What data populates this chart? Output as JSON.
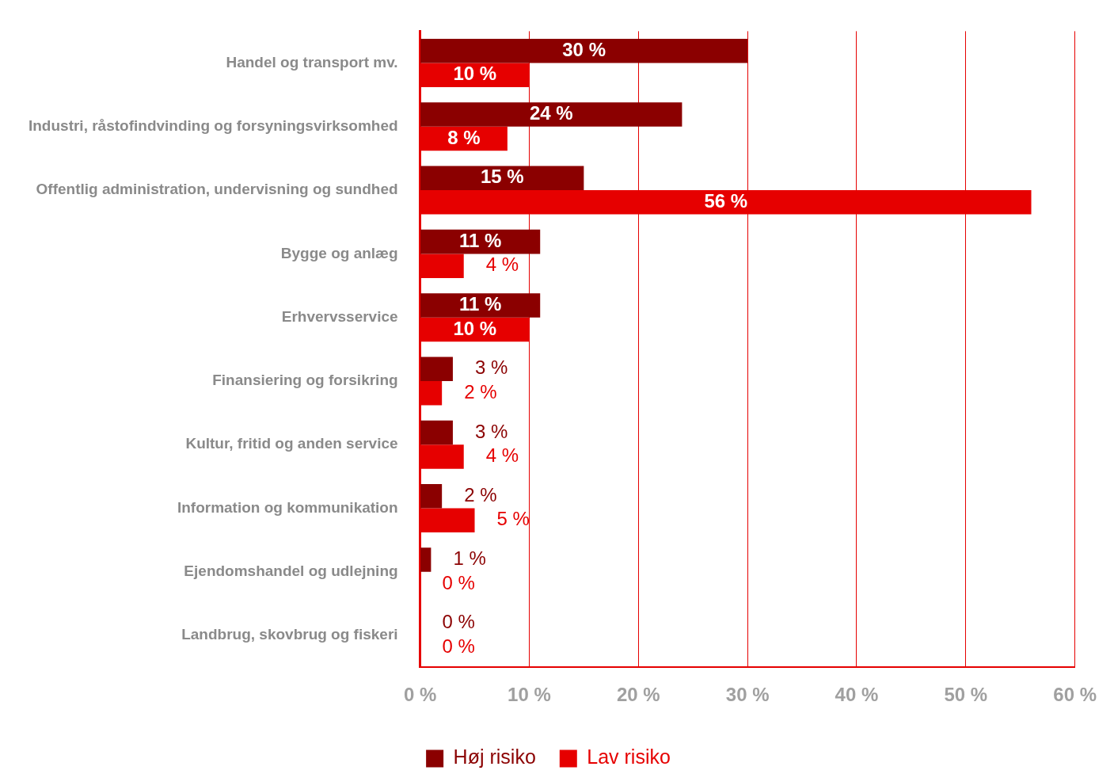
{
  "chart_data": {
    "type": "bar",
    "orientation": "horizontal",
    "categories": [
      "Handel og transport mv.",
      "Industri, råstofindvinding og forsyningsvirksomhed",
      "Offentlig administration, undervisning og sundhed",
      "Bygge og anlæg",
      "Erhvervsservice",
      "Finansiering og forsikring",
      "Kultur, fritid og anden service",
      "Information og kommunikation",
      "Ejendomshandel og udlejning",
      "Landbrug, skovbrug og fiskeri"
    ],
    "series": [
      {
        "name": "Høj risiko",
        "color": "#8b0000",
        "values": [
          30,
          24,
          15,
          11,
          11,
          3,
          3,
          2,
          1,
          0
        ],
        "value_labels": [
          "30 %",
          "24 %",
          "15 %",
          "11 %",
          "11 %",
          "3 %",
          "3 %",
          "2 %",
          "1 %",
          "0 %"
        ]
      },
      {
        "name": "Lav risiko",
        "color": "#e60000",
        "values": [
          10,
          8,
          56,
          4,
          10,
          2,
          4,
          5,
          0,
          0
        ],
        "value_labels": [
          "10 %",
          "8 %",
          "56 %",
          "4 %",
          "10 %",
          "2 %",
          "4 %",
          "5 %",
          "0 %",
          "0 %"
        ]
      }
    ],
    "xlim": [
      0,
      60
    ],
    "xticks": [
      {
        "value": 0,
        "label": "0 %"
      },
      {
        "value": 10,
        "label": "10 %"
      },
      {
        "value": 20,
        "label": "20 %"
      },
      {
        "value": 30,
        "label": "30 %"
      },
      {
        "value": 40,
        "label": "40 %"
      },
      {
        "value": 50,
        "label": "50 %"
      },
      {
        "value": 60,
        "label": "60 %"
      }
    ],
    "grid": "x",
    "legend": "bottom"
  }
}
